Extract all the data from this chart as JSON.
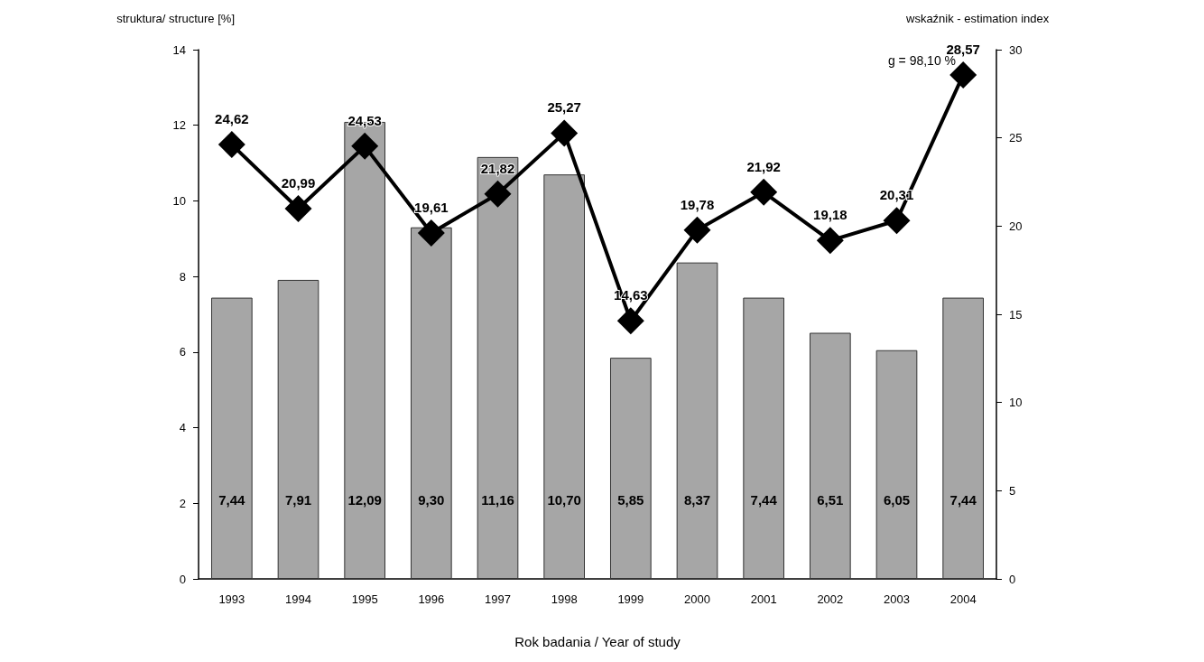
{
  "chart_data": {
    "type": "bar",
    "xlabel": "Rok badania / Year of study",
    "ylabel": "struktura/ structure [%]",
    "y2label": "wskaźnik - estimation index",
    "categories": [
      "1993",
      "1994",
      "1995",
      "1996",
      "1997",
      "1998",
      "1999",
      "2000",
      "2001",
      "2002",
      "2003",
      "2004"
    ],
    "series": [
      {
        "color": "#a6a6a6",
        "values": [
          7.44,
          7.91,
          12.09,
          9.3,
          11.16,
          10.7,
          5.85,
          8.37,
          7.44,
          6.51,
          6.05,
          7.44
        ],
        "value_labels": [
          "7,44",
          "7,91",
          "12,09",
          "9,30",
          "11,16",
          "10,70",
          "5,85",
          "8,37",
          "7,44",
          "6,51",
          "6,05",
          "7,44"
        ]
      },
      {
        "type": "line",
        "axis": "y2",
        "color": "#000000",
        "marker": "diamond",
        "line_style": "solid",
        "values": [
          24.62,
          20.99,
          24.53,
          19.61,
          21.82,
          25.27,
          14.63,
          19.78,
          21.92,
          19.18,
          20.31,
          28.57
        ],
        "value_labels": [
          "24,62",
          "20,99",
          "24,53",
          "19,61",
          "21,82",
          "25,27",
          "14,63",
          "19,78",
          "21,92",
          "19,18",
          "20,31",
          "28,57"
        ]
      }
    ],
    "ylim": [
      0,
      14
    ],
    "yticks": [
      0,
      2,
      4,
      6,
      8,
      10,
      12,
      14
    ],
    "y2lim": [
      0,
      30
    ],
    "y2ticks": [
      0,
      5,
      10,
      15,
      20,
      25,
      30
    ],
    "annotations": [
      "g = 98,10 %"
    ],
    "grid": false
  }
}
